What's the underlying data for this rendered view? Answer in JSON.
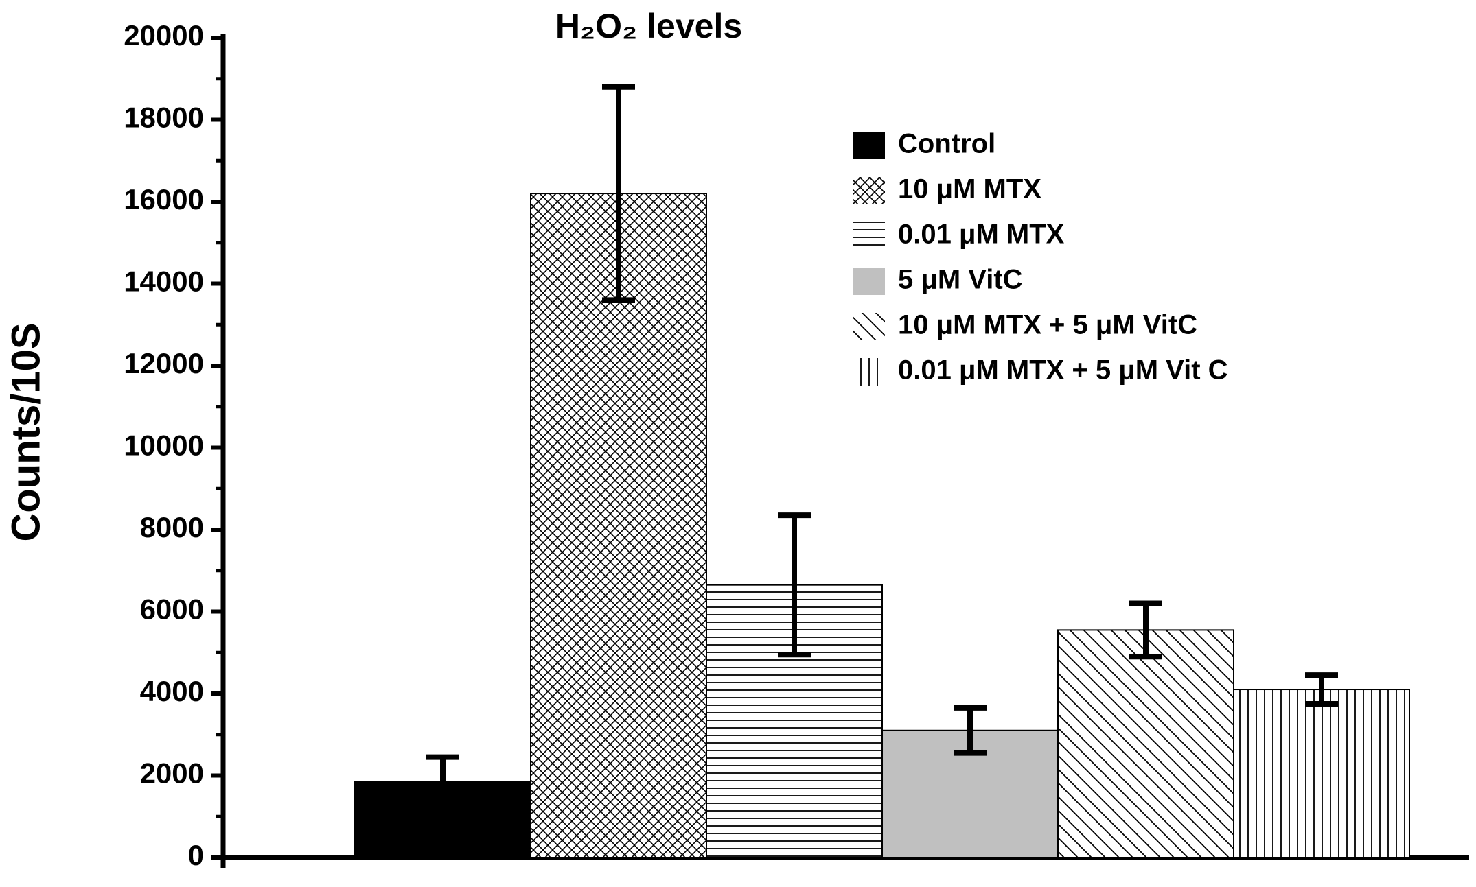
{
  "chart_data": {
    "type": "bar",
    "title": "H₂O₂ levels",
    "y_label": "Counts/10S",
    "categories": [
      null
    ],
    "series": [
      {
        "name": "Control",
        "color": "#000000",
        "pattern": "solid",
        "values": [
          1850
        ],
        "errors": [
          600
        ]
      },
      {
        "name": "10 μM MTX",
        "color": "#ffffff",
        "pattern": "crosshatch",
        "values": [
          16200
        ],
        "errors": [
          2600
        ]
      },
      {
        "name": "0.01 μM MTX",
        "color": "#ffffff",
        "pattern": "horizontal",
        "values": [
          6650
        ],
        "errors": [
          1700
        ]
      },
      {
        "name": "5 μM VitC",
        "color": "#c0c0c0",
        "pattern": "solid",
        "values": [
          3100
        ],
        "errors": [
          550
        ]
      },
      {
        "name": "10 μM MTX + 5 μM VitC",
        "color": "#ffffff",
        "pattern": "diagonal",
        "values": [
          5550
        ],
        "errors": [
          650
        ]
      },
      {
        "name": "0.01 μM MTX + 5 μM Vit C",
        "color": "#ffffff",
        "pattern": "vertical",
        "values": [
          4100
        ],
        "errors": [
          350
        ]
      }
    ],
    "ylim": [
      0,
      20000
    ],
    "yticks": [
      0,
      2000,
      4000,
      6000,
      8000,
      10000,
      12000,
      14000,
      16000,
      18000,
      20000
    ]
  }
}
